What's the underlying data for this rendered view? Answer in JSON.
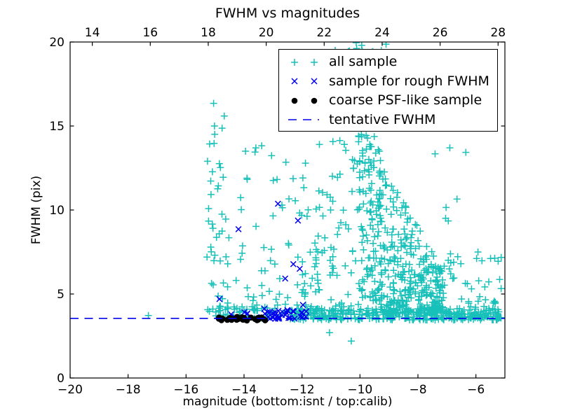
{
  "title": "FWHM vs magnitudes",
  "axes": {
    "xlabel": "magnitude (bottom:isnt / top:calib)",
    "ylabel": "FWHM (pix)",
    "xlim": [
      -20,
      -5
    ],
    "ylim": [
      0,
      20
    ],
    "bottom_ticks": [
      {
        "value": -20,
        "label": "−20"
      },
      {
        "value": -18,
        "label": "−18"
      },
      {
        "value": -16,
        "label": "−16"
      },
      {
        "value": -14,
        "label": "−14"
      },
      {
        "value": -12,
        "label": "−12"
      },
      {
        "value": -10,
        "label": "−10"
      },
      {
        "value": -8,
        "label": "−8"
      },
      {
        "value": -6,
        "label": "−6"
      }
    ],
    "top_ticks": [
      {
        "value": 14,
        "label": "14"
      },
      {
        "value": 16,
        "label": "16"
      },
      {
        "value": 18,
        "label": "18"
      },
      {
        "value": 20,
        "label": "20"
      },
      {
        "value": 22,
        "label": "22"
      },
      {
        "value": 24,
        "label": "24"
      },
      {
        "value": 26,
        "label": "26"
      },
      {
        "value": 28,
        "label": "28"
      }
    ],
    "top_axis_offset": 33.235,
    "y_ticks": [
      {
        "value": 0,
        "label": "0"
      },
      {
        "value": 5,
        "label": "5"
      },
      {
        "value": 10,
        "label": "10"
      },
      {
        "value": 15,
        "label": "15"
      },
      {
        "value": 20,
        "label": "20"
      }
    ]
  },
  "legend": {
    "items": [
      {
        "label": "all sample",
        "marker": "plus",
        "color": "#17c0b9"
      },
      {
        "label": "sample for rough FWHM",
        "marker": "x",
        "color": "#0000ee"
      },
      {
        "label": "coarse PSF-like sample",
        "marker": "dot",
        "color": "#000000"
      },
      {
        "label": "tentative FWHM",
        "marker": "dash",
        "color": "#0000ee"
      }
    ]
  },
  "colors": {
    "background": "#ffffff",
    "frame": "#000000",
    "text": "#000000",
    "all_sample": "#17c0b9",
    "rough_fwhm": "#0000ee",
    "psf_sample": "#000000",
    "tentative_line": "#0000ee"
  },
  "chart_data": {
    "type": "scatter",
    "title": "FWHM vs magnitudes",
    "xlabel": "magnitude (bottom:isnt / top:calib)",
    "ylabel": "FWHM (pix)",
    "xlim": [
      -20,
      -5
    ],
    "ylim": [
      0,
      20
    ],
    "grid": false,
    "legend_position": "upper right",
    "tentative_fwhm": 3.55,
    "seed": 42,
    "series": [
      {
        "name": "all sample",
        "marker": "plus",
        "color": "#17c0b9",
        "points": [
          [
            -17.3,
            3.72
          ],
          [
            -15.05,
            16.35
          ],
          [
            -15.26,
            12.9
          ],
          [
            -13.95,
            13.5
          ],
          [
            -13.62,
            13.45
          ],
          [
            -11.4,
            13.9
          ],
          [
            -11.05,
            2.7
          ],
          [
            -10.3,
            2.2
          ],
          [
            -6.52,
            6.8
          ],
          [
            -5.93,
            7.5
          ],
          [
            -6.9,
            13.7
          ],
          [
            -5.3,
            3.75
          ],
          [
            -5.18,
            3.6
          ]
        ],
        "clusters": [
          {
            "name": "left-column",
            "count": 40,
            "mag": [
              -15.28,
              -14.52
            ],
            "fwhm": [
              3.95,
              14.0
            ],
            "powy": 1.5
          },
          {
            "name": "left-column-top",
            "count": 5,
            "mag": [
              -15.18,
              -14.68
            ],
            "fwhm": [
              12.3,
              16.0
            ],
            "powy": 1.0
          },
          {
            "name": "mid-sparse",
            "count": 58,
            "mag": [
              -14.55,
              -11.6
            ],
            "fwhm": [
              4.0,
              12.0
            ],
            "powy": 2.0
          },
          {
            "name": "mid-high",
            "count": 7,
            "mag": [
              -14.15,
              -12.45
            ],
            "fwhm": [
              10.4,
              14.3
            ],
            "powy": 1.0
          },
          {
            "name": "cloud-left-flank",
            "count": 30,
            "mag": [
              -12.05,
              -10.9
            ],
            "fwhm": [
              5.0,
              13.5
            ],
            "powy": 1.5
          },
          {
            "name": "cloud-high-left",
            "count": 55,
            "mag": [
              -11.05,
              -9.9
            ],
            "fwhm": [
              6.0,
              19.8
            ],
            "powy": 1.15
          },
          {
            "name": "dense-column",
            "count": 165,
            "mag": [
              -10.05,
              -9.25
            ],
            "fwhm": [
              4.6,
              19.9
            ],
            "powy": 1.3
          },
          {
            "name": "cloud-funnel",
            "count": 320,
            "type": "funnel",
            "mag": [
              -9.35,
              -7.1
            ],
            "fwhmMin": 3.85,
            "fwhmMaxStart": 13.0,
            "fwhmMaxEnd": 6.3,
            "powy": 1.7
          },
          {
            "name": "right-tail",
            "count": 70,
            "mag": [
              -7.1,
              -5.12
            ],
            "fwhm": [
              3.55,
              7.5
            ],
            "powy": 2.2
          },
          {
            "name": "right-high",
            "count": 6,
            "mag": [
              -7.45,
              -6.25
            ],
            "fwhm": [
              8.5,
              14.0
            ],
            "powy": 1.0
          },
          {
            "name": "band-main",
            "count": 330,
            "mag": [
              -12.3,
              -5.15
            ],
            "fwhm": [
              3.45,
              4.15
            ],
            "powy": 1.2
          },
          {
            "name": "band-left",
            "count": 45,
            "mag": [
              -15.05,
              -12.3
            ],
            "fwhm": [
              3.5,
              4.3
            ],
            "powy": 1.3
          },
          {
            "name": "top-strip",
            "count": 26,
            "mag": [
              -11.2,
              -7.7
            ],
            "fwhm": [
              17.2,
              20.0
            ],
            "powy": 1.0
          },
          {
            "name": "mid-right-fill",
            "count": 24,
            "mag": [
              -11.6,
              -10.0
            ],
            "fwhm": [
              4.2,
              9.0
            ],
            "powy": 1.6
          }
        ]
      },
      {
        "name": "sample for rough FWHM",
        "marker": "x",
        "color": "#0000ee",
        "points": [
          [
            -14.85,
            4.7
          ],
          [
            -14.19,
            8.86
          ],
          [
            -12.83,
            10.37
          ],
          [
            -12.14,
            9.37
          ],
          [
            -12.3,
            6.78
          ],
          [
            -12.08,
            6.5
          ],
          [
            -12.58,
            5.92
          ],
          [
            -11.97,
            4.35
          ],
          [
            -13.3,
            4.12
          ]
        ],
        "clusters": [
          {
            "name": "x-band",
            "count": 34,
            "mag": [
              -13.38,
              -11.85
            ],
            "fwhm": [
              3.52,
              4.05
            ],
            "powy": 1.3
          },
          {
            "name": "x-band-left",
            "count": 7,
            "mag": [
              -14.92,
              -13.4
            ],
            "fwhm": [
              3.55,
              4.0
            ],
            "powy": 1.4
          }
        ]
      },
      {
        "name": "coarse PSF-like sample",
        "marker": "dot",
        "color": "#000000",
        "points": [],
        "clusters": [
          {
            "name": "psf-bar",
            "count": 28,
            "mag": [
              -14.88,
              -13.24
            ],
            "fwhm": [
              3.42,
              3.64
            ],
            "powy": 1.0
          }
        ]
      },
      {
        "name": "tentative FWHM",
        "type": "hline",
        "style": "dashed",
        "color": "#0000ee",
        "y": 3.55
      }
    ]
  }
}
